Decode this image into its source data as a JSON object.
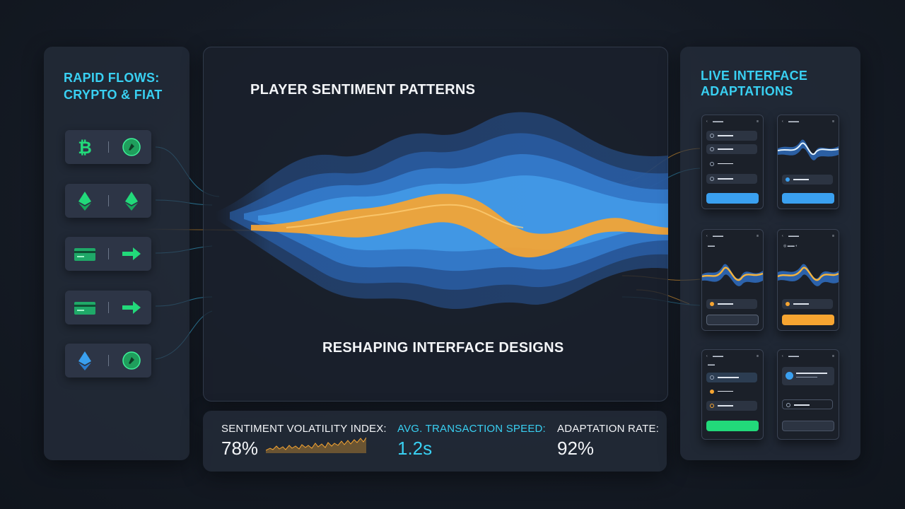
{
  "left": {
    "title_line1": "RAPID FLOWS:",
    "title_line2": "CRYPTO & FIAT",
    "rows": [
      {
        "left_icon": "bitcoin-icon",
        "right_icon": "tether-coin-icon"
      },
      {
        "left_icon": "ethereum-icon",
        "right_icon": "ethereum-icon"
      },
      {
        "left_icon": "credit-card-icon",
        "right_icon": "arrow-right-icon"
      },
      {
        "left_icon": "credit-card-icon",
        "right_icon": "arrow-right-icon"
      },
      {
        "left_icon": "ethereum-icon",
        "right_icon": "tether-coin-icon"
      }
    ]
  },
  "center": {
    "title": "PLAYER SENTIMENT PATTERNS",
    "subtitle": "RESHAPING INTERFACE DESIGNS"
  },
  "stats": [
    {
      "label": "SENTIMENT VOLATILITY INDEX:",
      "value": "78%"
    },
    {
      "label": "AVG. TRANSACTION SPEED:",
      "value": "1.2s"
    },
    {
      "label": "ADAPTATION RATE:",
      "value": "92%"
    }
  ],
  "right": {
    "title_line1": "LIVE INTERFACE",
    "title_line2": "ADAPTATIONS"
  },
  "colors": {
    "accent_cyan": "#39d0f2",
    "accent_green": "#22d97a",
    "accent_blue": "#3aa0f0",
    "accent_orange": "#f7a531",
    "panel": "#262e3c"
  }
}
